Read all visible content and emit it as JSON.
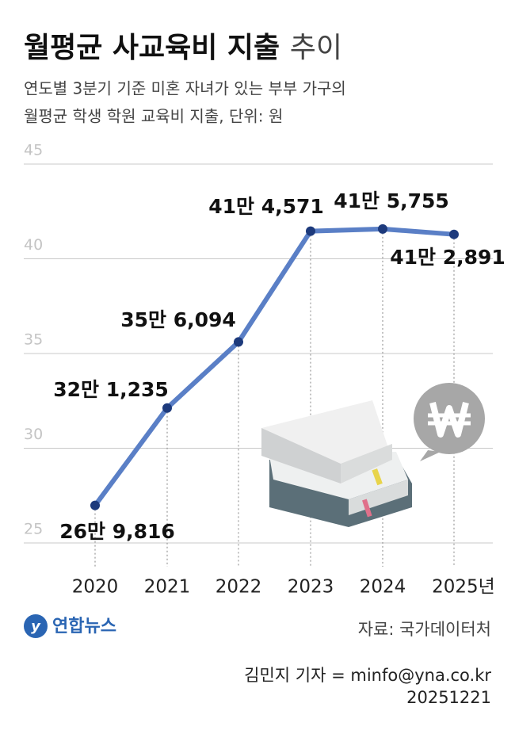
{
  "chart_data": {
    "type": "line",
    "title": "월평균 사교육비 지출",
    "title_suffix": "추이",
    "subtitle": [
      "연도별 3분기 기준 미혼 자녀가 있는 부부 가구의",
      "월평균 학생 학원 교육비 지출, 단위: 원"
    ],
    "categories": [
      "2020",
      "2021",
      "2022",
      "2023",
      "2024",
      "2025년"
    ],
    "values": [
      26.9816,
      32.1235,
      35.6094,
      41.4571,
      41.5755,
      41.2891
    ],
    "value_labels": [
      "26만 9,816",
      "32만 1,235",
      "35만 6,094",
      "41만 4,571",
      "41만 5,755",
      "41만 2,891"
    ],
    "line_color": "#5a7fc6",
    "marker_color": "#1d3a7c",
    "ylim": [
      25,
      45
    ],
    "yticks": [
      25,
      30,
      35,
      40,
      45
    ],
    "grid": true,
    "source": "자료: 국가데이터처",
    "logo": "연합뉴스",
    "credit": "김민지 기자 = minfo@yna.co.kr",
    "date": "20251221"
  }
}
